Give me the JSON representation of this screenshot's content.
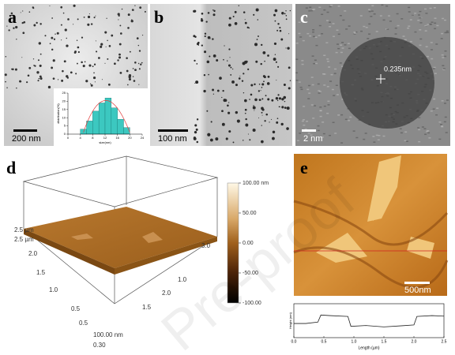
{
  "panels": {
    "a": {
      "label": "a",
      "scale_bar": "200 nm",
      "inset": {
        "type": "histogram",
        "ylabel": "distribution(%)",
        "xlabel": "size(nm)",
        "bins": [
          4,
          6,
          8,
          10,
          12,
          14,
          16,
          18,
          20
        ],
        "values": [
          3,
          8,
          14,
          19,
          22,
          16,
          9,
          4
        ],
        "xlim": [
          0,
          24
        ],
        "xticks": [
          0,
          4,
          8,
          12,
          16,
          20,
          24
        ],
        "ylim": [
          0,
          25
        ],
        "yticks": [
          0,
          5,
          10,
          15,
          20,
          25
        ]
      }
    },
    "b": {
      "label": "b",
      "scale_bar": "100 nm"
    },
    "c": {
      "label": "c",
      "scale_bar": "2 nm",
      "annotation": "0.235nm"
    },
    "d": {
      "label": "d",
      "axis_texts": [
        "2.5 µm",
        "2.5 µm",
        "2.0",
        "1.5",
        "1.0",
        "0.5",
        "0.30",
        "100.00 nm",
        "3.0",
        "2.0",
        "1.5",
        "1.0",
        "0.5"
      ],
      "colorbar": {
        "lim": [
          -100,
          100
        ],
        "ticks": [
          {
            "value": 100,
            "label": "100.00 nm"
          },
          {
            "value": 50,
            "label": "50.00"
          },
          {
            "value": 0,
            "label": "0.00"
          },
          {
            "value": -50,
            "label": "-50.00"
          },
          {
            "value": -100,
            "label": "-100.00"
          }
        ]
      }
    },
    "e": {
      "label": "e",
      "scale_bar": "500nm",
      "profile": {
        "type": "line",
        "xlabel": "Length (µm)",
        "ylabel": "Height (nm)",
        "x": [
          0,
          0.2,
          0.4,
          0.45,
          0.6,
          0.9,
          0.95,
          1.2,
          1.5,
          1.8,
          2.0,
          2.05,
          2.3,
          2.5
        ],
        "values": [
          1,
          1,
          1.5,
          4,
          3.8,
          3.5,
          0,
          0.3,
          -0.2,
          0.2,
          0.5,
          3.5,
          3.8,
          3.6
        ],
        "xlim": [
          0,
          2.5
        ],
        "ylim": [
          -4,
          8
        ],
        "xticks": [
          {
            "value": 0,
            "label": "0.0"
          },
          {
            "value": 0.5,
            "label": "0.5"
          },
          {
            "value": 1,
            "label": "1.0"
          },
          {
            "value": 1.5,
            "label": "1.5"
          },
          {
            "value": 2,
            "label": "2.0"
          },
          {
            "value": 2.5,
            "label": "2.5"
          }
        ]
      }
    }
  },
  "watermark": "Pre-proof"
}
